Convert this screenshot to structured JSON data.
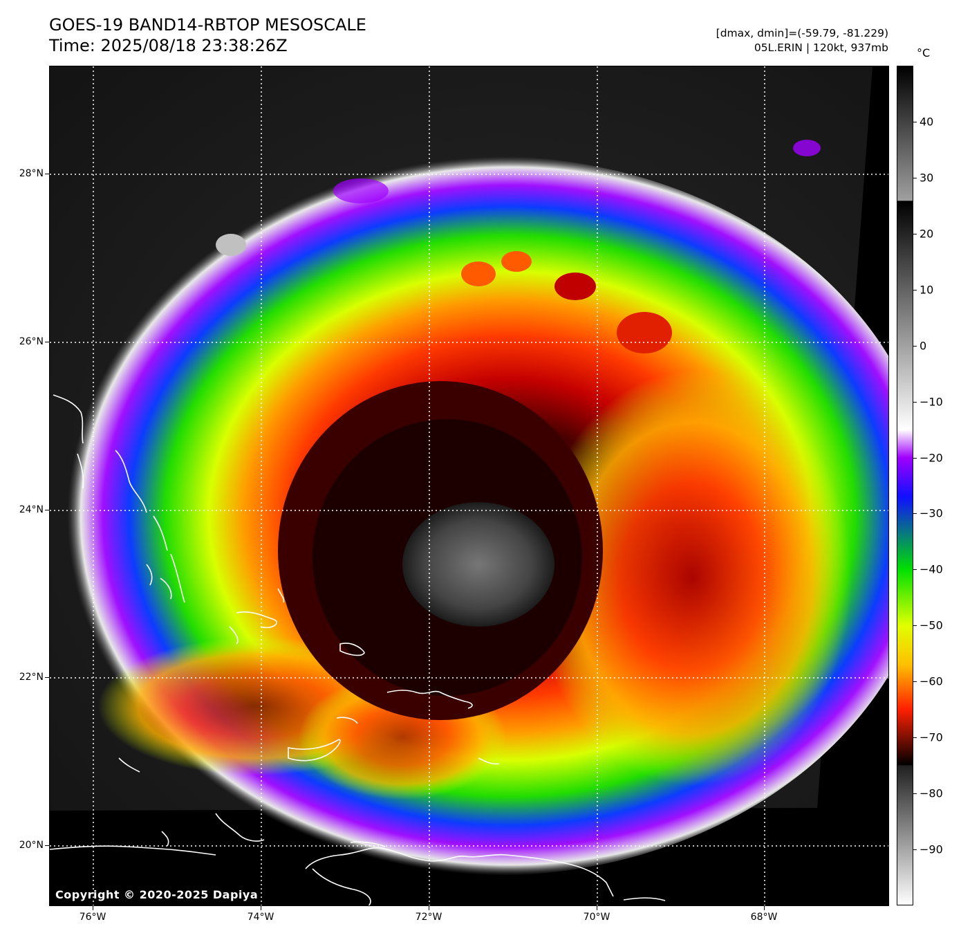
{
  "header": {
    "title_line1": "GOES-19 BAND14-RBTOP MESOSCALE",
    "title_line2": "Time: 2025/08/18 23:38:26Z",
    "range_text": "[dmax, dmin]=(-59.79, -81.229)",
    "storm_text": "05L.ERIN | 120kt, 937mb"
  },
  "map": {
    "lat_labels": [
      "28°N",
      "26°N",
      "24°N",
      "22°N",
      "20°N"
    ],
    "lon_labels": [
      "76°W",
      "74°W",
      "72°W",
      "70°W",
      "68°W"
    ],
    "copyright": "Copyright © 2020-2025 Dapiya",
    "storm_center": {
      "lat": 23.5,
      "lon": -71.6
    }
  },
  "colorbar": {
    "unit": "°C",
    "tick_labels": [
      "40",
      "30",
      "20",
      "10",
      "0",
      "−10",
      "−20",
      "−30",
      "−40",
      "−50",
      "−60",
      "−70",
      "−80",
      "−90"
    ],
    "tick_values": [
      40,
      30,
      20,
      10,
      0,
      -10,
      -20,
      -30,
      -40,
      -50,
      -60,
      -70,
      -80,
      -90
    ],
    "range": [
      -100,
      50
    ],
    "stops": [
      {
        "value": 50,
        "color": "#000000"
      },
      {
        "value": 26,
        "color": "#a0a0a0"
      },
      {
        "value": 25.9,
        "color": "#000000"
      },
      {
        "value": -15,
        "color": "#ffffff"
      },
      {
        "value": -20,
        "color": "#a000ff"
      },
      {
        "value": -27,
        "color": "#1010ff"
      },
      {
        "value": -40,
        "color": "#00e000"
      },
      {
        "value": -50,
        "color": "#e0ff00"
      },
      {
        "value": -57,
        "color": "#ffc000"
      },
      {
        "value": -65,
        "color": "#ff2000"
      },
      {
        "value": -75,
        "color": "#000000"
      },
      {
        "value": -75.1,
        "color": "#202020"
      },
      {
        "value": -100,
        "color": "#ffffff"
      }
    ]
  }
}
